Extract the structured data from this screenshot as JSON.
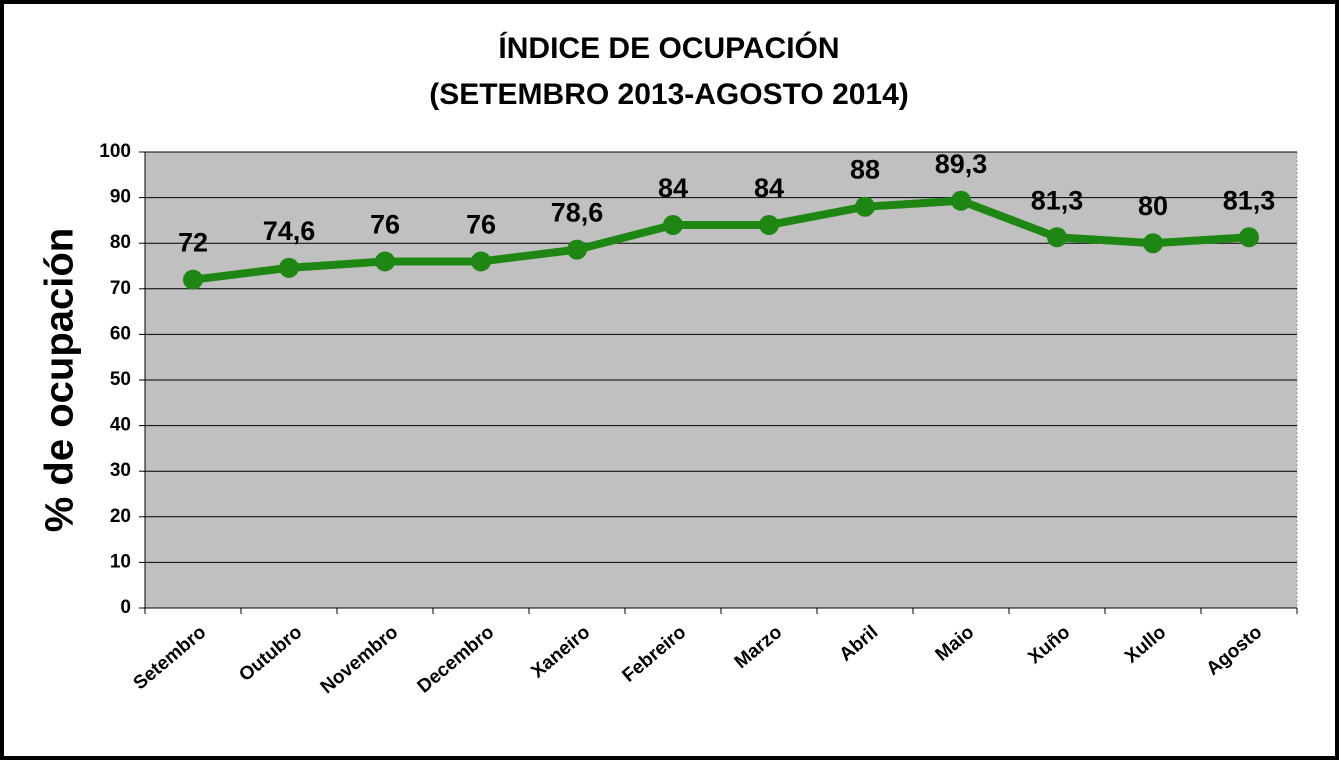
{
  "chart_data": {
    "type": "line",
    "title": "ÍNDICE DE OCUPACIÓN",
    "subtitle": "(SETEMBRO 2013-AGOSTO 2014)",
    "ylabel": "% de ocupación",
    "categories": [
      "Setembro",
      "Outubro",
      "Novembro",
      "Decembro",
      "Xaneiro",
      "Febreiro",
      "Marzo",
      "Abril",
      "Maio",
      "Xuño",
      "Xullo",
      "Agosto"
    ],
    "series": [
      {
        "name": "% de ocupación",
        "color": "#1e8714",
        "values": [
          72,
          74.6,
          76,
          76,
          78.6,
          84,
          84,
          88,
          89.3,
          81.3,
          80,
          81.3
        ],
        "value_labels": [
          "72",
          "74,6",
          "76",
          "76",
          "78,6",
          "84",
          "84",
          "88",
          "89,3",
          "81,3",
          "80",
          "81,3"
        ]
      }
    ],
    "ylim": [
      0,
      100
    ],
    "yticks": [
      0,
      10,
      20,
      30,
      40,
      50,
      60,
      70,
      80,
      90,
      100
    ],
    "grid": true
  }
}
